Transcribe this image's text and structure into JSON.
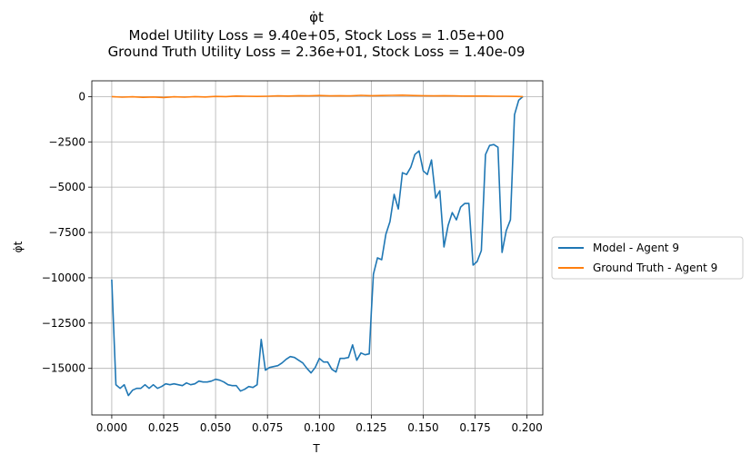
{
  "chart_data": {
    "type": "line",
    "title": "φ̇t",
    "subtitle_lines": [
      "Model Utility Loss = 9.40e+05, Stock Loss = 1.05e+00",
      "Ground Truth Utility Loss = 2.36e+01, Stock Loss = 1.40e-09"
    ],
    "xlabel": "T",
    "ylabel": "φ̇t",
    "xlim": [
      -0.0096,
      0.2076
    ],
    "ylim": [
      -17570,
      870
    ],
    "xticks": [
      0.0,
      0.025,
      0.05,
      0.075,
      0.1,
      0.125,
      0.15,
      0.175,
      0.2
    ],
    "xtick_labels": [
      "0.000",
      "0.025",
      "0.050",
      "0.075",
      "0.100",
      "0.125",
      "0.150",
      "0.175",
      "0.200"
    ],
    "yticks": [
      0,
      -2500,
      -5000,
      -7500,
      -10000,
      -12500,
      -15000
    ],
    "ytick_labels": [
      "0",
      "−2500",
      "−5000",
      "−7500",
      "−10000",
      "−12500",
      "−15000"
    ],
    "grid": true,
    "legend_position": "outside-right",
    "series": [
      {
        "name": "Model - Agent 9",
        "color": "#1f77b4",
        "x": [
          0.0,
          0.002,
          0.004,
          0.006,
          0.008,
          0.01,
          0.012,
          0.014,
          0.016,
          0.018,
          0.02,
          0.022,
          0.024,
          0.026,
          0.028,
          0.03,
          0.032,
          0.034,
          0.036,
          0.038,
          0.04,
          0.042,
          0.044,
          0.046,
          0.048,
          0.05,
          0.052,
          0.054,
          0.056,
          0.058,
          0.06,
          0.062,
          0.064,
          0.066,
          0.068,
          0.07,
          0.072,
          0.074,
          0.076,
          0.078,
          0.08,
          0.082,
          0.084,
          0.086,
          0.088,
          0.09,
          0.092,
          0.094,
          0.096,
          0.098,
          0.1,
          0.102,
          0.104,
          0.106,
          0.108,
          0.11,
          0.112,
          0.114,
          0.116,
          0.118,
          0.12,
          0.122,
          0.124,
          0.125,
          0.126,
          0.128,
          0.13,
          0.132,
          0.134,
          0.136,
          0.138,
          0.14,
          0.142,
          0.144,
          0.146,
          0.148,
          0.15,
          0.152,
          0.154,
          0.156,
          0.158,
          0.16,
          0.162,
          0.164,
          0.166,
          0.168,
          0.17,
          0.172,
          0.174,
          0.176,
          0.178,
          0.18,
          0.182,
          0.184,
          0.186,
          0.188,
          0.19,
          0.192,
          0.194,
          0.196,
          0.198
        ],
        "y": [
          -10100,
          -15900,
          -16100,
          -15900,
          -16500,
          -16200,
          -16100,
          -16100,
          -15900,
          -16100,
          -15900,
          -16100,
          -16000,
          -15850,
          -15900,
          -15850,
          -15900,
          -15950,
          -15800,
          -15900,
          -15850,
          -15700,
          -15750,
          -15750,
          -15700,
          -15600,
          -15650,
          -15750,
          -15900,
          -15950,
          -15950,
          -16250,
          -16150,
          -16000,
          -16050,
          -15900,
          -13400,
          -15100,
          -14950,
          -14900,
          -14850,
          -14700,
          -14500,
          -14350,
          -14400,
          -14550,
          -14700,
          -15000,
          -15250,
          -14950,
          -14450,
          -14650,
          -14650,
          -15050,
          -15200,
          -14450,
          -14450,
          -14400,
          -13700,
          -14550,
          -14150,
          -14250,
          -14200,
          -11900,
          -9800,
          -8900,
          -9000,
          -7600,
          -6900,
          -5400,
          -6200,
          -4200,
          -4300,
          -3900,
          -3200,
          -3000,
          -4100,
          -4300,
          -3500,
          -5600,
          -5200,
          -8300,
          -7100,
          -6400,
          -6800,
          -6100,
          -5900,
          -5900,
          -9300,
          -9100,
          -8500,
          -3200,
          -2700,
          -2650,
          -2800,
          -8600,
          -7400,
          -6800,
          -1000,
          -200,
          0
        ]
      },
      {
        "name": "Ground Truth - Agent 9",
        "color": "#ff7f0e",
        "x": [
          0.0,
          0.005,
          0.01,
          0.015,
          0.02,
          0.025,
          0.03,
          0.035,
          0.04,
          0.045,
          0.05,
          0.055,
          0.06,
          0.065,
          0.07,
          0.075,
          0.08,
          0.085,
          0.09,
          0.095,
          0.1,
          0.105,
          0.11,
          0.115,
          0.12,
          0.125,
          0.13,
          0.135,
          0.14,
          0.145,
          0.15,
          0.155,
          0.16,
          0.165,
          0.17,
          0.175,
          0.18,
          0.185,
          0.19,
          0.195,
          0.198
        ],
        "y": [
          0,
          -30,
          -10,
          -40,
          -20,
          -50,
          -10,
          -30,
          0,
          -20,
          10,
          0,
          30,
          20,
          10,
          20,
          40,
          30,
          50,
          40,
          60,
          40,
          50,
          40,
          70,
          50,
          60,
          70,
          80,
          60,
          50,
          40,
          50,
          40,
          30,
          30,
          30,
          20,
          20,
          10,
          0
        ]
      }
    ]
  }
}
